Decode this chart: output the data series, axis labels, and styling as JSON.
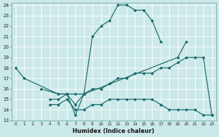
{
  "xlabel": "Humidex (Indice chaleur)",
  "xlim": [
    -0.5,
    23.5
  ],
  "ylim": [
    13,
    24.2
  ],
  "yticks": [
    13,
    14,
    15,
    16,
    17,
    18,
    19,
    20,
    21,
    22,
    23,
    24
  ],
  "xticks": [
    0,
    1,
    2,
    3,
    4,
    5,
    6,
    7,
    8,
    9,
    10,
    11,
    12,
    13,
    14,
    15,
    16,
    17,
    18,
    19,
    20,
    21,
    22,
    23
  ],
  "bg_color": "#cce9e9",
  "line_color": "#1a6b6b",
  "grid_color": "#b8d8d8",
  "line1_x": [
    0,
    1,
    5,
    6,
    7,
    8,
    9,
    10,
    11,
    12,
    13,
    14,
    15,
    16,
    17
  ],
  "line1_y": [
    18,
    17,
    15.5,
    15.5,
    13.5,
    15.5,
    21,
    22,
    22.5,
    24,
    24,
    23.5,
    23.5,
    22.5,
    20.5
  ],
  "line2_x": [
    3,
    5,
    6,
    7,
    8,
    19,
    20
  ],
  "line2_y": [
    16,
    15.5,
    15.5,
    14.5,
    15.5,
    19,
    20.5
  ],
  "line3_x": [
    4,
    5,
    6,
    7,
    8,
    9,
    10,
    11,
    12,
    13,
    14,
    15,
    16,
    17,
    18,
    19,
    20,
    21,
    22,
    23
  ],
  "line3_y": [
    14.5,
    14.5,
    15,
    14,
    14,
    14.5,
    14.5,
    15,
    15,
    15,
    15,
    15,
    15,
    14.5,
    14,
    14,
    14,
    14,
    13.5,
    13.5
  ],
  "line4_x": [
    4,
    5,
    6,
    7,
    8,
    9,
    10,
    11,
    12,
    13,
    14,
    15,
    16,
    17,
    18,
    19,
    20,
    21,
    22,
    23
  ],
  "line4_y": [
    15,
    15,
    15.5,
    15.5,
    15.5,
    16,
    16,
    16.5,
    17,
    17,
    17.5,
    17.5,
    17.5,
    18,
    18,
    18.5,
    19,
    19,
    19,
    13.5
  ]
}
